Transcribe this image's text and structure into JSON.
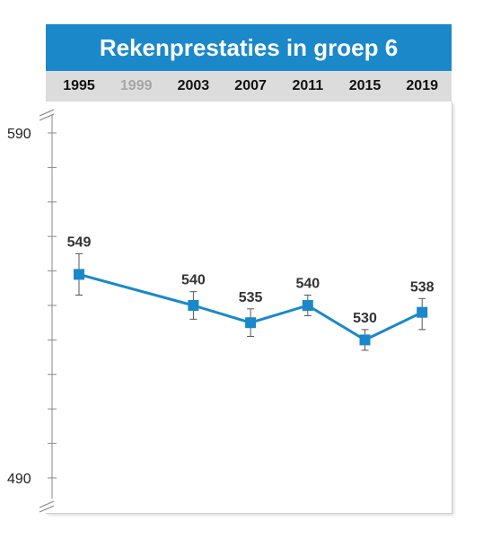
{
  "chart_data": {
    "type": "line",
    "title": "Rekenprestaties in groep 6",
    "categories": [
      "1995",
      "1999",
      "2003",
      "2007",
      "2011",
      "2015",
      "2019"
    ],
    "highlight_categories": [
      "1995",
      "2003",
      "2007",
      "2011",
      "2015",
      "2019"
    ],
    "muted_categories": [
      "1999"
    ],
    "series": [
      {
        "x": [
          "1995",
          "2003",
          "2007",
          "2011",
          "2015",
          "2019"
        ],
        "values": [
          549,
          540,
          535,
          540,
          530,
          538
        ],
        "error_low": [
          543,
          536,
          531,
          537,
          527,
          533
        ],
        "error_high": [
          555,
          544,
          539,
          543,
          533,
          542
        ],
        "color": "#1a88c9"
      }
    ],
    "ylim": [
      490,
      590
    ],
    "y_tick_labels": [
      "590",
      "490"
    ],
    "y_minor_step": 10,
    "axis_break": true,
    "grid": false,
    "xlabel": "",
    "ylabel": ""
  },
  "colors": {
    "header_background": "#1a88c9",
    "header_text": "#ffffff",
    "year_bar_background": "#dcdcdc",
    "muted_year_text": "#a6a6a6",
    "year_text": "#111111",
    "line": "#1a88c9"
  }
}
